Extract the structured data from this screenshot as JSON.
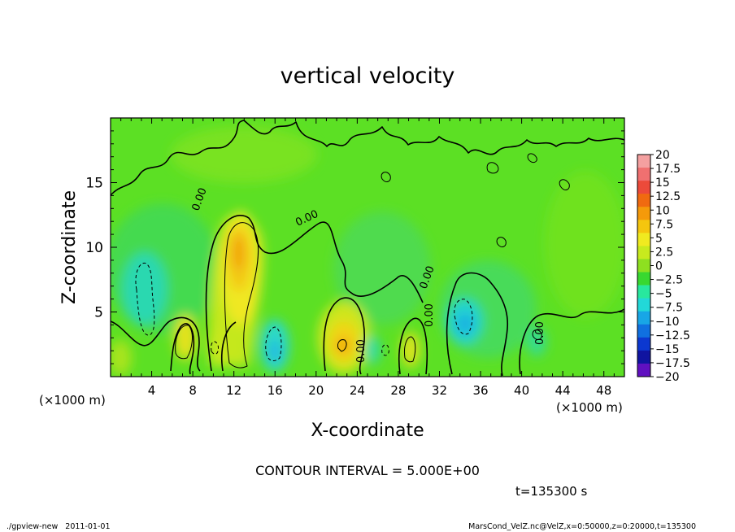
{
  "chart_data": {
    "type": "heatmap",
    "title": "vertical velocity",
    "xlabel": "X-coordinate",
    "ylabel": "Z-coordinate",
    "x_unit_left": "(×1000 m)",
    "x_unit_right": "(×1000 m)",
    "xlim": [
      0,
      50
    ],
    "ylim": [
      0,
      20
    ],
    "x_ticks": [
      "4",
      "8",
      "12",
      "16",
      "20",
      "24",
      "28",
      "32",
      "36",
      "40",
      "44",
      "48"
    ],
    "y_ticks": [
      "5",
      "10",
      "15"
    ],
    "x_tick_values": [
      4,
      8,
      12,
      16,
      20,
      24,
      28,
      32,
      36,
      40,
      44,
      48
    ],
    "y_tick_values": [
      5,
      10,
      15
    ],
    "colorbar_labels": [
      "20",
      "17.5",
      "15",
      "12.5",
      "10",
      "7.5",
      "5",
      "2.5",
      "0",
      "−2.5",
      "−5",
      "−7.5",
      "−10",
      "−12.5",
      "−15",
      "−17.5",
      "−20"
    ],
    "colorbar_colors": [
      "#f4a0a0",
      "#f07070",
      "#ec4a3a",
      "#f06a10",
      "#f59a0a",
      "#f5c60e",
      "#f0ea20",
      "#c8ea1e",
      "#8ee020",
      "#38d830",
      "#28e89e",
      "#22d8d8",
      "#18a6e6",
      "#1070e0",
      "#0c38d0",
      "#1014a0",
      "#6010c0"
    ],
    "contour_labels": [
      "0.00",
      "0.00",
      "0.00",
      "0.00",
      "0.00",
      "0.00"
    ],
    "contour_interval_text": "CONTOUR INTERVAL = 5.000E+00",
    "time_text": "t=135300 s",
    "features": [
      {
        "x": 12.5,
        "z": 8.5,
        "value": 10
      },
      {
        "x": 22.5,
        "z": 2.5,
        "value": 8
      },
      {
        "x": 8.0,
        "z": 3.0,
        "value": 6
      },
      {
        "x": 11.0,
        "z": 2.5,
        "value": 5
      },
      {
        "x": 29.5,
        "z": 2.5,
        "value": 5
      },
      {
        "x": 15.8,
        "z": 2.5,
        "value": -6
      },
      {
        "x": 34.5,
        "z": 5.0,
        "value": -6
      },
      {
        "x": 3.5,
        "z": 7.0,
        "value": -4
      }
    ]
  },
  "footer": {
    "left": "./gpview-new   2011-01-01",
    "right": "MarsCond_VelZ.nc@VelZ,x=0:50000,z=0:20000,t=135300"
  }
}
